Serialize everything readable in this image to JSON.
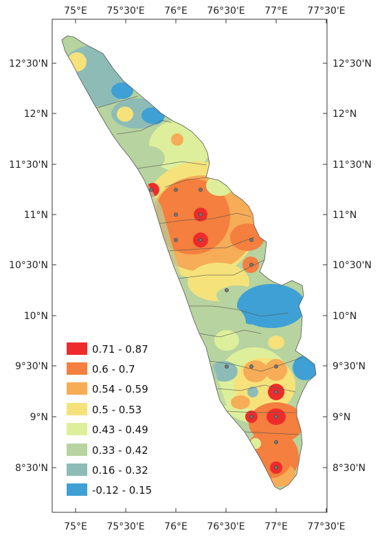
{
  "map": {
    "top_ticks": [
      "75°E",
      "75°30'E",
      "76°E",
      "76°30'E",
      "77°E",
      "77°30'E"
    ],
    "bottom_ticks": [
      "75°E",
      "75°30'E",
      "76°E",
      "76°30'E",
      "77°E",
      "77°30'E"
    ],
    "left_ticks": [
      "12°30'N",
      "12°N",
      "11°30'N",
      "11°N",
      "10°30'N",
      "10°N",
      "9°30'N",
      "9°N",
      "8°30'N"
    ],
    "right_ticks": [
      "12°30'N",
      "12°N",
      "11°30'N",
      "11°N",
      "10°30'N",
      "10°N",
      "9°30'N",
      "9°N",
      "8°30'N"
    ]
  },
  "legend": {
    "items": [
      {
        "label": "0.71 - 0.87",
        "color": "#ee2b2b"
      },
      {
        "label": "0.6 - 0.7",
        "color": "#f47f3e"
      },
      {
        "label": "0.54 - 0.59",
        "color": "#f7ac57"
      },
      {
        "label": "0.5 - 0.53",
        "color": "#f6e27a"
      },
      {
        "label": "0.43 - 0.49",
        "color": "#ddef9b"
      },
      {
        "label": "0.33 - 0.42",
        "color": "#b7d39f"
      },
      {
        "label": "0.16 - 0.32",
        "color": "#8dbcb7"
      },
      {
        "label": "-0.12 - 0.15",
        "color": "#3ea0d5"
      }
    ]
  }
}
